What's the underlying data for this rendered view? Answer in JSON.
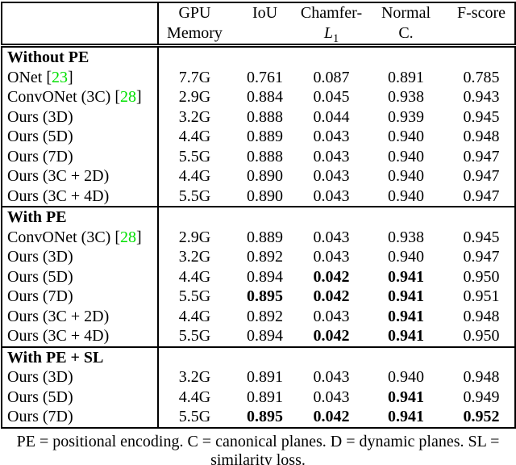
{
  "colors": {
    "citation_green": "#00E000",
    "text": "#000000",
    "background": "#ffffff"
  },
  "table": {
    "cite_open": "[",
    "cite_close": "]",
    "columns": [
      {
        "key": "gpu-memory",
        "lines": [
          "GPU",
          "Memory"
        ]
      },
      {
        "key": "iou",
        "lines": [
          "IoU",
          ""
        ]
      },
      {
        "key": "chamfer-l1",
        "lines": [
          "Chamfer-",
          {
            "italic": "L",
            "sub": "1"
          }
        ]
      },
      {
        "key": "normal-c",
        "lines": [
          "Normal",
          "C."
        ]
      },
      {
        "key": "f-score",
        "lines": [
          "F-score",
          ""
        ]
      }
    ],
    "sections": [
      {
        "title": "Without PE",
        "rows": [
          {
            "label": "ONet",
            "cite": "23",
            "values": [
              "7.7G",
              "0.761",
              "0.087",
              "0.891",
              "0.785"
            ]
          },
          {
            "label": "ConvONet (3C)",
            "cite": "28",
            "values": [
              "2.9G",
              "0.884",
              "0.045",
              "0.938",
              "0.943"
            ]
          },
          {
            "label": "Ours (3D)",
            "values": [
              "3.2G",
              "0.888",
              "0.044",
              "0.939",
              "0.945"
            ]
          },
          {
            "label": "Ours (5D)",
            "values": [
              "4.4G",
              "0.889",
              "0.043",
              "0.940",
              "0.948"
            ]
          },
          {
            "label": "Ours (7D)",
            "values": [
              "5.5G",
              "0.888",
              "0.043",
              "0.940",
              "0.947"
            ]
          },
          {
            "label": "Ours (3C + 2D)",
            "values": [
              "4.4G",
              "0.890",
              "0.043",
              "0.940",
              "0.947"
            ]
          },
          {
            "label": "Ours (3C + 4D)",
            "values": [
              "5.5G",
              "0.890",
              "0.043",
              "0.940",
              "0.947"
            ]
          }
        ]
      },
      {
        "title": "With PE",
        "rows": [
          {
            "label": "ConvONet (3C)",
            "cite": "28",
            "values": [
              "2.9G",
              "0.889",
              "0.043",
              "0.938",
              "0.945"
            ]
          },
          {
            "label": "Ours (3D)",
            "values": [
              "3.2G",
              "0.892",
              "0.043",
              "0.940",
              "0.947"
            ]
          },
          {
            "label": "Ours (5D)",
            "values": [
              "4.4G",
              "0.894",
              {
                "v": "0.042",
                "b": true
              },
              {
                "v": "0.941",
                "b": true
              },
              "0.950"
            ]
          },
          {
            "label": "Ours (7D)",
            "values": [
              "5.5G",
              {
                "v": "0.895",
                "b": true
              },
              {
                "v": "0.042",
                "b": true
              },
              {
                "v": "0.941",
                "b": true
              },
              "0.951"
            ]
          },
          {
            "label": "Ours (3C + 2D)",
            "values": [
              "4.4G",
              "0.892",
              "0.043",
              {
                "v": "0.941",
                "b": true
              },
              "0.948"
            ]
          },
          {
            "label": "Ours (3C + 4D)",
            "values": [
              "5.5G",
              "0.894",
              {
                "v": "0.042",
                "b": true
              },
              {
                "v": "0.941",
                "b": true
              },
              "0.950"
            ]
          }
        ]
      },
      {
        "title": "With PE + SL",
        "rows": [
          {
            "label": "Ours (3D)",
            "values": [
              "3.2G",
              "0.891",
              "0.043",
              "0.940",
              "0.948"
            ]
          },
          {
            "label": "Ours (5D)",
            "values": [
              "4.4G",
              "0.891",
              "0.043",
              {
                "v": "0.941",
                "b": true
              },
              "0.949"
            ]
          },
          {
            "label": "Ours (7D)",
            "values": [
              "5.5G",
              {
                "v": "0.895",
                "b": true
              },
              {
                "v": "0.042",
                "b": true
              },
              {
                "v": "0.941",
                "b": true
              },
              {
                "v": "0.952",
                "b": true
              }
            ]
          }
        ]
      }
    ]
  },
  "caption": "PE = positional encoding. C = canonical planes. D = dynamic planes. SL = similarity loss."
}
